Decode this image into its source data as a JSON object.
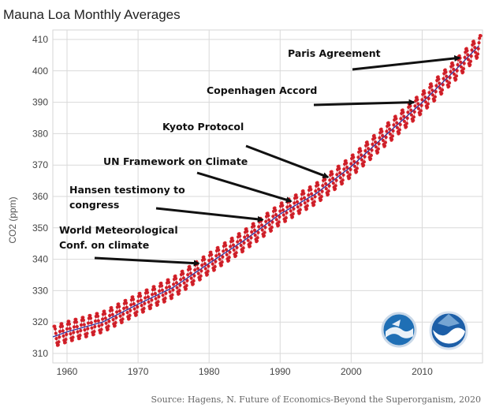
{
  "chart_data": {
    "type": "line",
    "title": "Mauna Loa Monthly Averages",
    "ylabel": "CO2 (ppm)",
    "xlabel": "",
    "xlim": [
      1958,
      2018.5
    ],
    "ylim": [
      307,
      413
    ],
    "x_ticks": [
      1960,
      1970,
      1980,
      1990,
      2000,
      2010
    ],
    "y_ticks": [
      310,
      320,
      330,
      340,
      350,
      360,
      370,
      380,
      390,
      400,
      410
    ],
    "grid": true,
    "series": [
      {
        "style": "monthly points with seasonal cycle",
        "color": "#d9232a",
        "x": [
          1958,
          1960,
          1965,
          1970,
          1975,
          1980,
          1985,
          1990,
          1995,
          2000,
          2005,
          2010,
          2015,
          2018
        ],
        "values": [
          315.3,
          316.9,
          320.0,
          325.7,
          331.1,
          338.7,
          346.1,
          354.4,
          360.8,
          369.5,
          379.8,
          389.9,
          401.0,
          408.0
        ],
        "seasonal_amplitude": 3.3
      },
      {
        "style": "trend line",
        "color": "#2233aa",
        "x": [
          1958,
          1960,
          1965,
          1970,
          1975,
          1980,
          1985,
          1990,
          1995,
          2000,
          2005,
          2010,
          2015,
          2018
        ],
        "values": [
          315.3,
          316.9,
          320.0,
          325.7,
          331.1,
          338.7,
          346.1,
          354.4,
          360.8,
          369.5,
          379.8,
          389.9,
          401.0,
          408.0
        ]
      }
    ],
    "annotations": [
      {
        "lines": [
          "Paris Agreement"
        ],
        "arrow_to_year": 2015.7
      },
      {
        "lines": [
          "Copenhagen Accord"
        ],
        "arrow_to_year": 2009.3
      },
      {
        "lines": [
          "Kyoto Protocol"
        ],
        "arrow_to_year": 1997.2
      },
      {
        "lines": [
          "UN Framework on Climate"
        ],
        "arrow_to_year": 1992.0
      },
      {
        "lines": [
          "Hansen testimony to",
          "congress"
        ],
        "arrow_to_year": 1988.0
      },
      {
        "lines": [
          "World Meteorological",
          "Conf. on climate"
        ],
        "arrow_to_year": 1979.0
      }
    ],
    "logos": [
      "noaa-emblem-icon",
      "noaa-logo-icon"
    ]
  },
  "source": "Source: Hagens, N. Future of Economics-Beyond the Superorganism, 2020"
}
